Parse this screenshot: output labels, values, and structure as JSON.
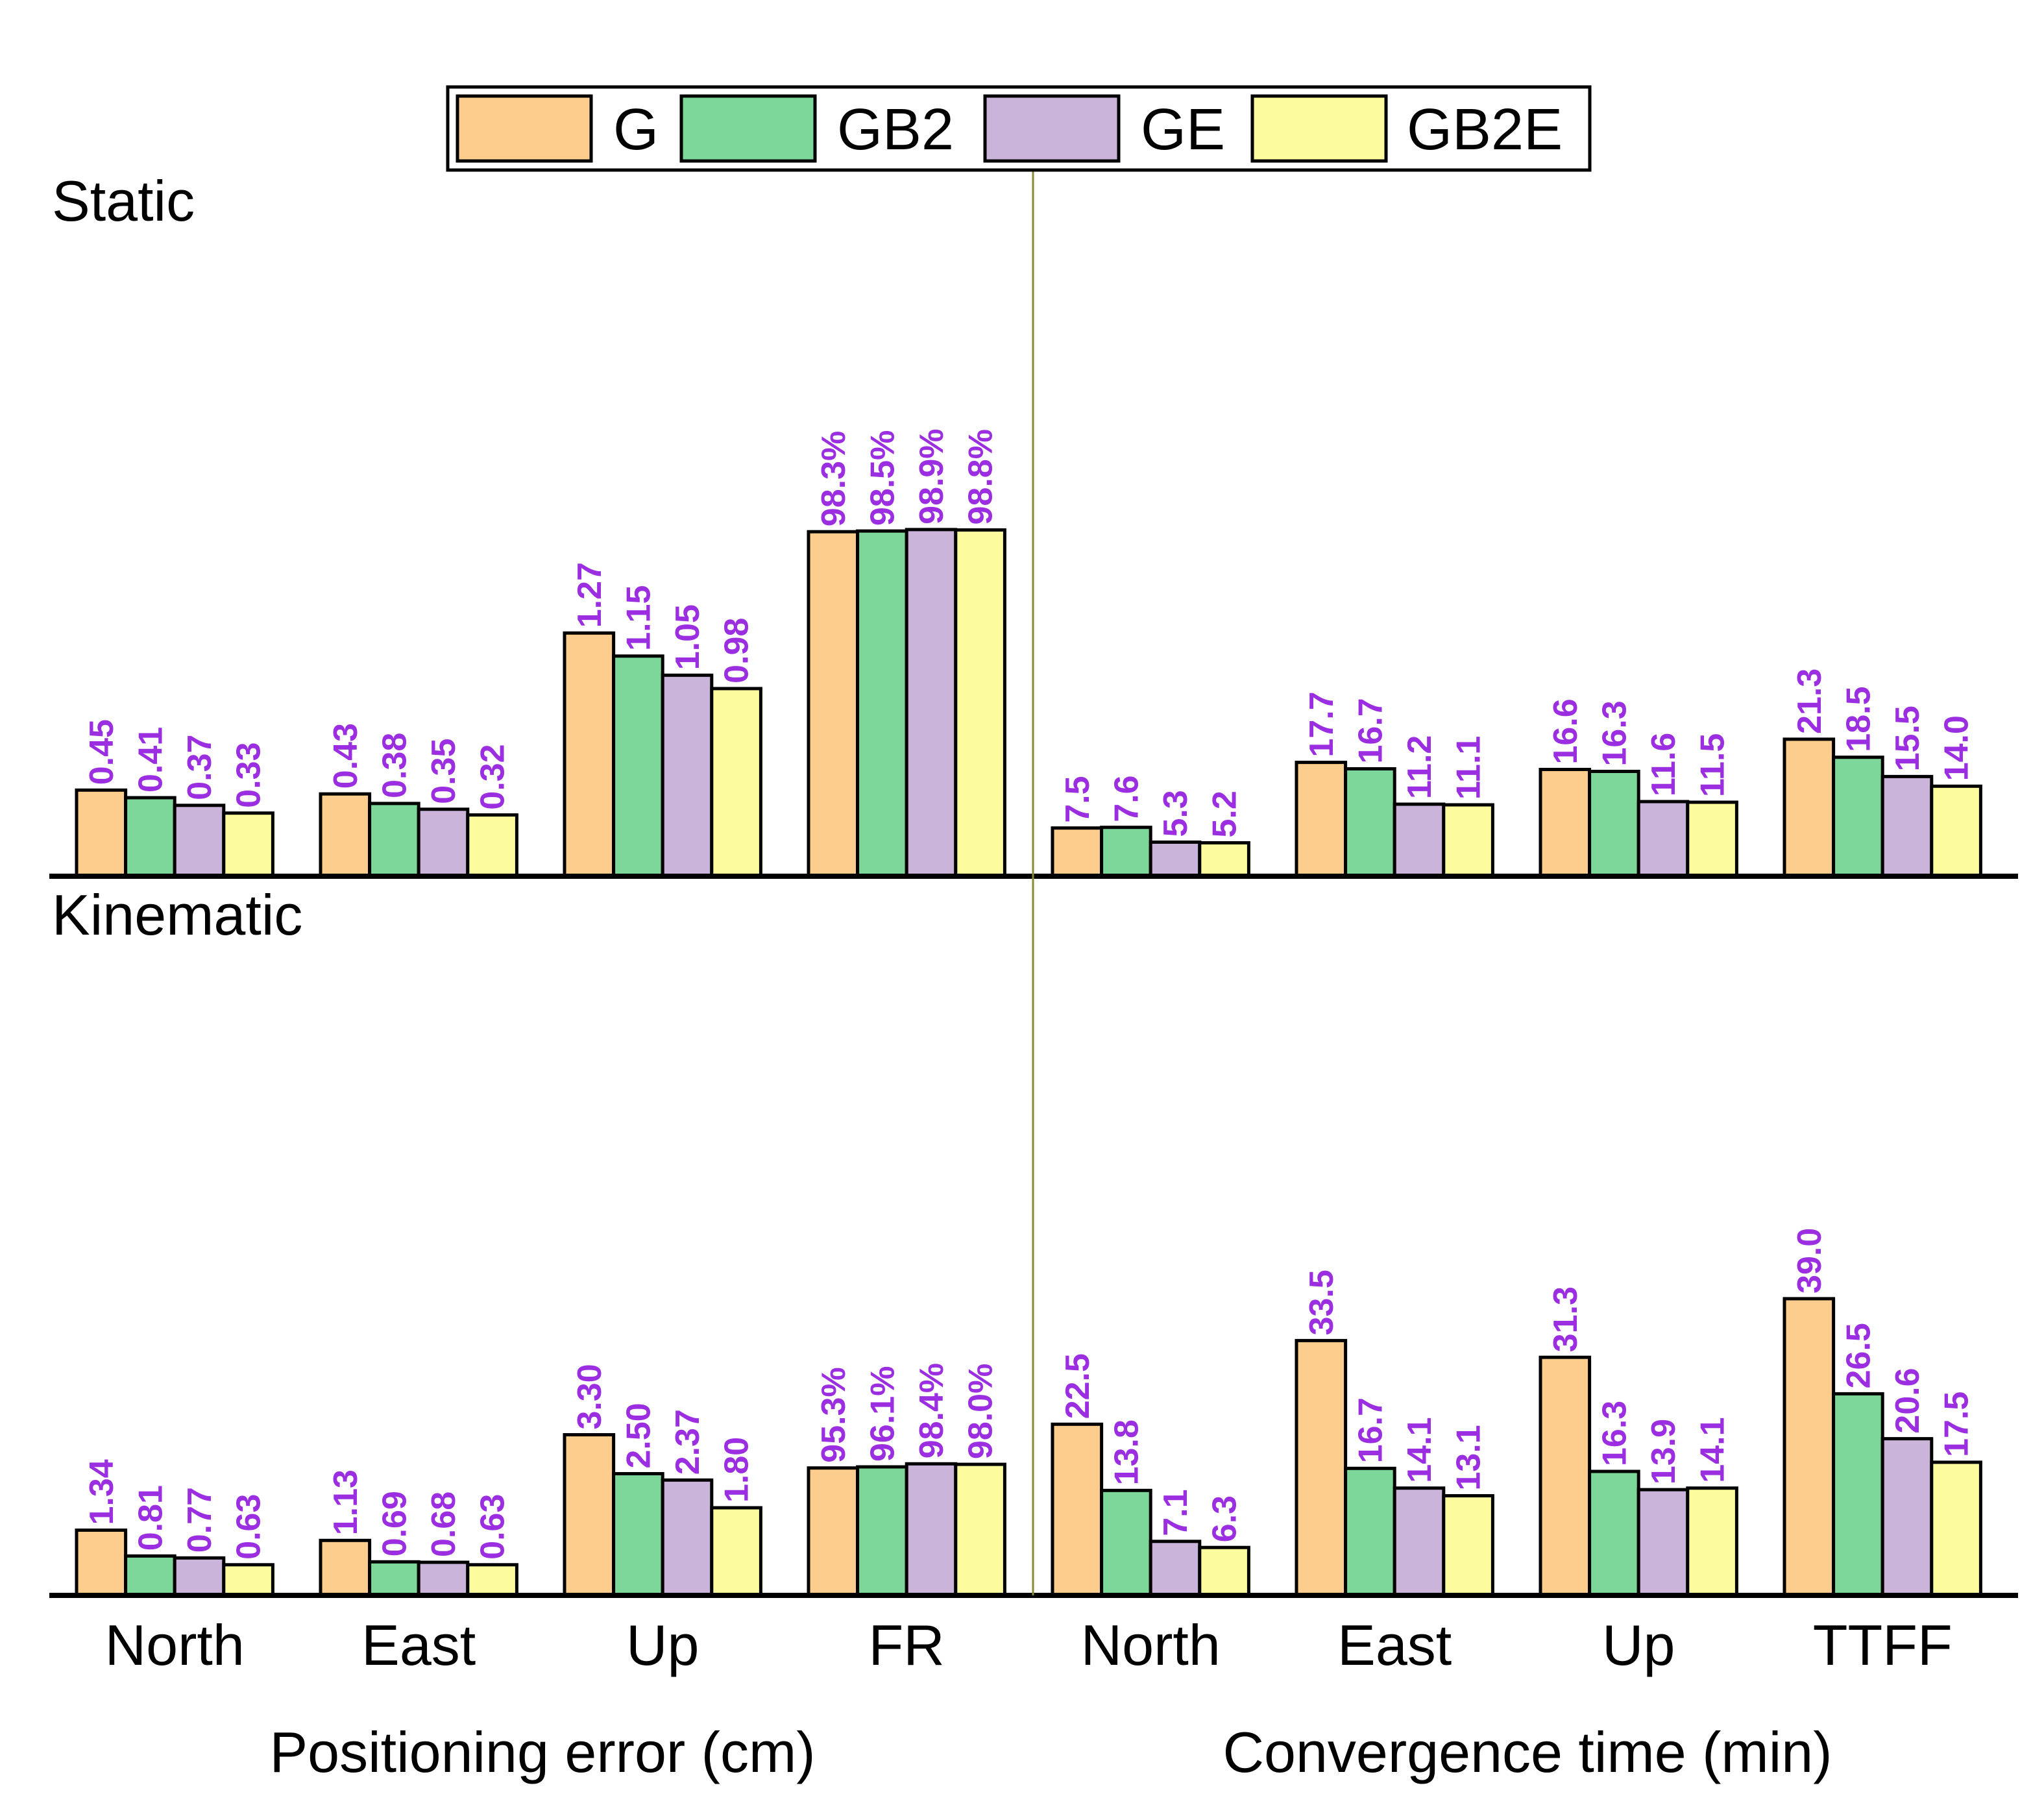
{
  "colors": {
    "G": "#fdcd8d",
    "GB2": "#7dd69a",
    "GE": "#cbb4d9",
    "GB2E": "#fcfc9f",
    "label": "#9b2ee0",
    "divider": "#8a8a3a"
  },
  "legend": [
    "G",
    "GB2",
    "GE",
    "GB2E"
  ],
  "group_labels": {
    "left": "Positioning error (cm)",
    "right": "Convergence time (min)"
  },
  "chart_data": [
    {
      "type": "bar",
      "title": "Static",
      "categories": [
        "North",
        "East",
        "Up",
        "FR",
        "North",
        "East",
        "Up",
        "TTFF"
      ],
      "series": [
        {
          "name": "G",
          "values": [
            0.45,
            0.43,
            1.27,
            98.3,
            7.5,
            17.7,
            16.6,
            21.3
          ],
          "labels": [
            "0.45",
            "0.43",
            "1.27",
            "98.3%",
            "7.5",
            "17.7",
            "16.6",
            "21.3"
          ]
        },
        {
          "name": "GB2",
          "values": [
            0.41,
            0.38,
            1.15,
            98.5,
            7.6,
            16.7,
            16.3,
            18.5
          ],
          "labels": [
            "0.41",
            "0.38",
            "1.15",
            "98.5%",
            "7.6",
            "16.7",
            "16.3",
            "18.5"
          ]
        },
        {
          "name": "GE",
          "values": [
            0.37,
            0.35,
            1.05,
            98.9,
            5.3,
            11.2,
            11.6,
            15.5
          ],
          "labels": [
            "0.37",
            "0.35",
            "1.05",
            "98.9%",
            "5.3",
            "11.2",
            "11.6",
            "15.5"
          ]
        },
        {
          "name": "GB2E",
          "values": [
            0.33,
            0.32,
            0.98,
            98.8,
            5.2,
            11.1,
            11.5,
            14.0
          ],
          "labels": [
            "0.33",
            "0.32",
            "0.98",
            "98.8%",
            "5.2",
            "11.1",
            "11.5",
            "14.0"
          ]
        }
      ]
    },
    {
      "type": "bar",
      "title": "Kinematic",
      "categories": [
        "North",
        "East",
        "Up",
        "FR",
        "North",
        "East",
        "Up",
        "TTFF"
      ],
      "series": [
        {
          "name": "G",
          "values": [
            1.34,
            1.13,
            3.3,
            95.3,
            22.5,
            33.5,
            31.3,
            39.0
          ],
          "labels": [
            "1.34",
            "1.13",
            "3.30",
            "95.3%",
            "22.5",
            "33.5",
            "31.3",
            "39.0"
          ]
        },
        {
          "name": "GB2",
          "values": [
            0.81,
            0.69,
            2.5,
            96.1,
            13.8,
            16.7,
            16.3,
            26.5
          ],
          "labels": [
            "0.81",
            "0.69",
            "2.50",
            "96.1%",
            "13.8",
            "16.7",
            "16.3",
            "26.5"
          ]
        },
        {
          "name": "GE",
          "values": [
            0.77,
            0.68,
            2.37,
            98.4,
            7.1,
            14.1,
            13.9,
            20.6
          ],
          "labels": [
            "0.77",
            "0.68",
            "2.37",
            "98.4%",
            "7.1",
            "14.1",
            "13.9",
            "20.6"
          ]
        },
        {
          "name": "GB2E",
          "values": [
            0.63,
            0.63,
            1.8,
            98.0,
            6.3,
            13.1,
            14.1,
            17.5
          ],
          "labels": [
            "0.63",
            "0.63",
            "1.80",
            "98.0%",
            "6.3",
            "13.1",
            "14.1",
            "17.5"
          ]
        }
      ]
    }
  ]
}
